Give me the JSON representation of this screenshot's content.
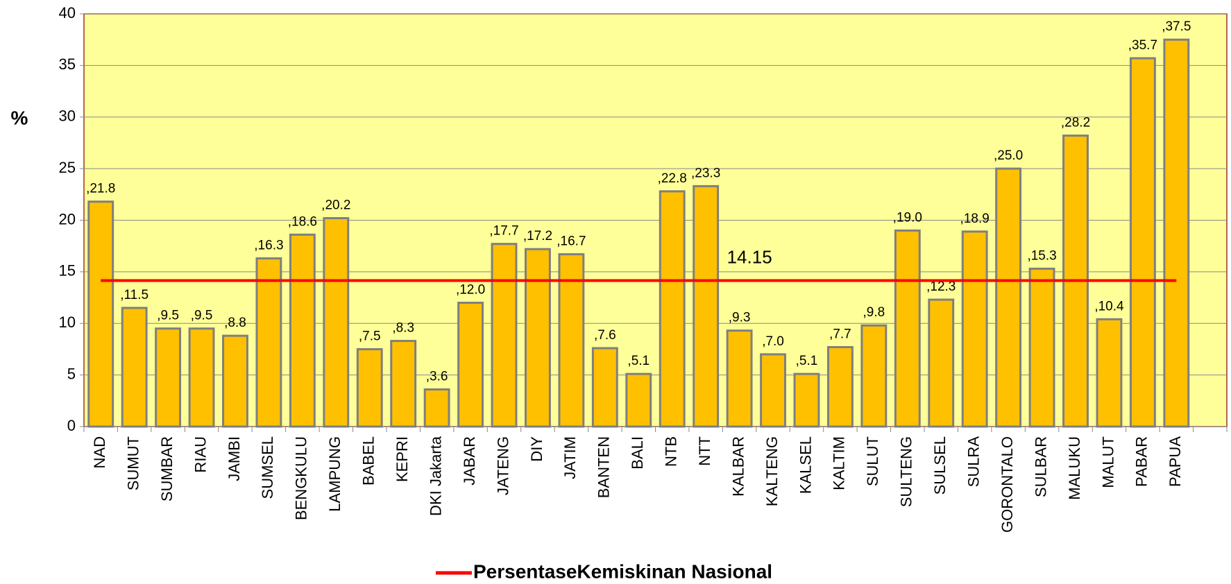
{
  "chart_data": {
    "type": "bar",
    "ylabel": "%",
    "categories": [
      "NAD",
      "SUMUT",
      "SUMBAR",
      "RIAU",
      "JAMBI",
      "SUMSEL",
      "BENGKULU",
      "LAMPUNG",
      "BABEL",
      "KEPRI",
      "DKI Jakarta",
      "JABAR",
      "JATENG",
      "DIY",
      "JATIM",
      "BANTEN",
      "BALI",
      "NTB",
      "NTT",
      "KALBAR",
      "KALTENG",
      "KALSEL",
      "KALTIM",
      "SULUT",
      "SULTENG",
      "SULSEL",
      "SULRA",
      "GORONTALO",
      "SULBAR",
      "MALUKU",
      "MALUT",
      "PABAR",
      "PAPUA"
    ],
    "values": [
      21.8,
      11.5,
      9.5,
      9.5,
      8.8,
      16.3,
      18.6,
      20.2,
      7.5,
      8.3,
      3.6,
      12.0,
      17.7,
      17.2,
      16.7,
      7.6,
      5.1,
      22.8,
      23.3,
      9.3,
      7.0,
      5.1,
      7.7,
      9.8,
      19.0,
      12.3,
      18.9,
      25.0,
      15.3,
      28.2,
      10.4,
      35.7,
      37.5
    ],
    "value_labels": [
      ",21.8",
      ",11.5",
      ",9.5",
      ",9.5",
      ",8.8",
      ",16.3",
      ",18.6",
      ",20.2",
      ",7.5",
      ",8.3",
      ",3.6",
      ",12.0",
      ",17.7",
      ",17.2",
      ",16.7",
      ",7.6",
      ",5.1",
      ",22.8",
      ",23.3",
      ",9.3",
      ",7.0",
      ",5.1",
      ",7.7",
      ",9.8",
      ",19.0",
      ",12.3",
      ",18.9",
      ",25.0",
      ",15.3",
      ",28.2",
      ",10.4",
      ",35.7",
      ",37.5"
    ],
    "color": "#ffc000",
    "reference_line": {
      "name": "PersentaseKemiskinan Nasional",
      "value": 14.15,
      "color": "#ff0000"
    },
    "ylim": [
      0,
      40
    ],
    "yticks": [
      0,
      5,
      10,
      15,
      20,
      25,
      30,
      35,
      40
    ],
    "grid": true
  }
}
